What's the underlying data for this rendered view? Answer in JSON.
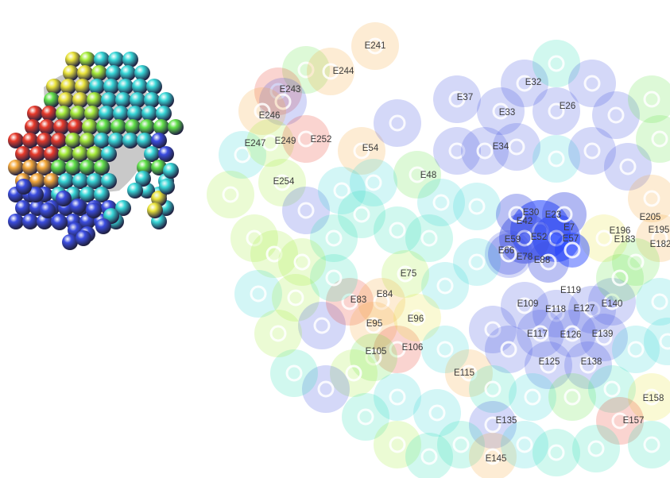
{
  "electrode_labels": [
    "E241",
    "E244",
    "E243",
    "E246",
    "E247",
    "E249",
    "E252",
    "E254",
    "E54",
    "E48",
    "E37",
    "E32",
    "E33",
    "E26",
    "E34",
    "E30",
    "E23",
    "E42",
    "E7",
    "E59",
    "E52",
    "E57",
    "E66",
    "E78",
    "E88",
    "E196",
    "E183",
    "E205",
    "E195",
    "E182",
    "E75",
    "E83",
    "E84",
    "E95",
    "E96",
    "E105",
    "E106",
    "E119",
    "E109",
    "E118",
    "E127",
    "E140",
    "E117",
    "E126",
    "E139",
    "E125",
    "E138",
    "E115",
    "E158",
    "E157",
    "E135",
    "E145"
  ],
  "electrode_colors": {
    "blue": "#3b4de0",
    "deep_blue": "#1a3cff",
    "cyan": "#38d8d8",
    "teal": "#2fe0b8",
    "green": "#62e24a",
    "lime": "#a6ec3a",
    "yellow": "#eae43a",
    "orange": "#f4a83a",
    "red": "#e83a2a",
    "gray": "#6c6c8a"
  },
  "ring_color": "#ffffff",
  "head_model": {
    "cap": "#c9c9c9"
  }
}
